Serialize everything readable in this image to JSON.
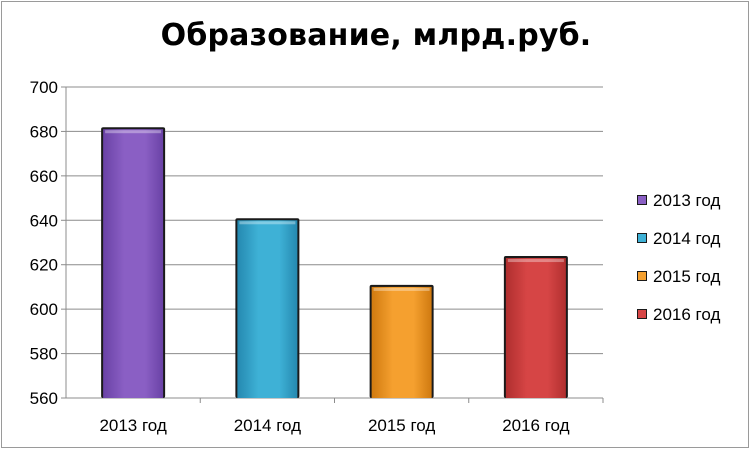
{
  "chart_data": {
    "type": "bar",
    "title": "Образование, млрд.руб.",
    "categories": [
      "2013 год",
      "2014 год",
      "2015 год",
      "2016 год"
    ],
    "values": [
      681,
      640,
      610,
      623
    ],
    "ylim": [
      560,
      700
    ],
    "yticks": [
      560,
      580,
      600,
      620,
      640,
      660,
      680,
      700
    ],
    "xlabel": "",
    "ylabel": "",
    "grid": true,
    "legend_position": "right",
    "legend": [
      "2013 год",
      "2014 год",
      "2015 год",
      "2016 год"
    ],
    "colors": [
      "#8a5fc4",
      "#3eb1d6",
      "#f5a02f",
      "#d64545"
    ],
    "colors_dark": [
      "#6a42a6",
      "#2589b0",
      "#d07a10",
      "#b02f2f"
    ]
  }
}
